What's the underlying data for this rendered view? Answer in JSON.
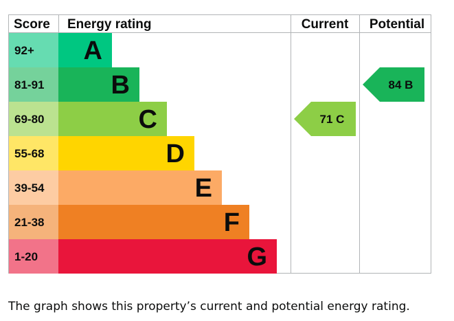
{
  "chart_data": {
    "type": "bar",
    "headers": {
      "score": "Score",
      "rating": "Energy rating",
      "current": "Current",
      "potential": "Potential"
    },
    "bands": [
      {
        "letter": "A",
        "range": "92+",
        "color": "#00c781",
        "score_bg": "#66dcb1"
      },
      {
        "letter": "B",
        "range": "81-91",
        "color": "#19b459",
        "score_bg": "#75d29b"
      },
      {
        "letter": "C",
        "range": "69-80",
        "color": "#8dce46",
        "score_bg": "#bbe290"
      },
      {
        "letter": "D",
        "range": "55-68",
        "color": "#ffd500",
        "score_bg": "#ffe666"
      },
      {
        "letter": "E",
        "range": "39-54",
        "color": "#fcaa65",
        "score_bg": "#fdcca3"
      },
      {
        "letter": "F",
        "range": "21-38",
        "color": "#ef8023",
        "score_bg": "#f5b37b"
      },
      {
        "letter": "G",
        "range": "1-20",
        "color": "#e9153b",
        "score_bg": "#f27389"
      }
    ],
    "current": {
      "value": 71,
      "band": "C",
      "label": "71 C",
      "color": "#8dce46"
    },
    "potential": {
      "value": 84,
      "band": "B",
      "label": "84 B",
      "color": "#19b459"
    }
  },
  "caption": "The graph shows this property’s current and potential energy rating."
}
